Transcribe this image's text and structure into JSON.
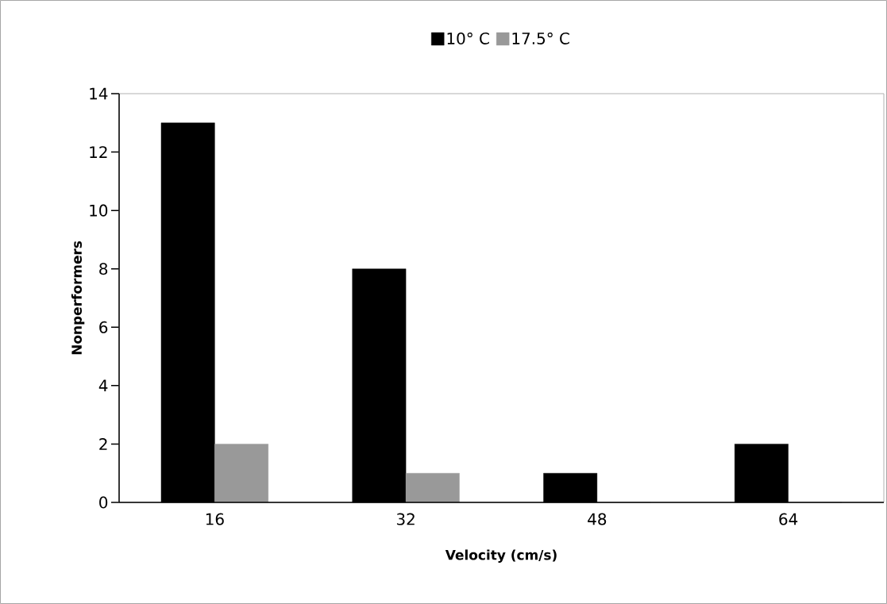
{
  "chart_data": {
    "type": "bar",
    "xlabel": "Velocity (cm/s)",
    "ylabel": "Nonperformers",
    "categories": [
      "16",
      "32",
      "48",
      "64"
    ],
    "series": [
      {
        "name": "10° C",
        "color": "#000000",
        "values": [
          13,
          8,
          1,
          2
        ]
      },
      {
        "name": "17.5° C",
        "color": "#999999",
        "values": [
          2,
          1,
          0,
          0
        ]
      }
    ],
    "ylim": [
      0,
      14
    ],
    "yticks": [
      0,
      2,
      4,
      6,
      8,
      10,
      12,
      14
    ],
    "grid": false,
    "legend": "top"
  }
}
